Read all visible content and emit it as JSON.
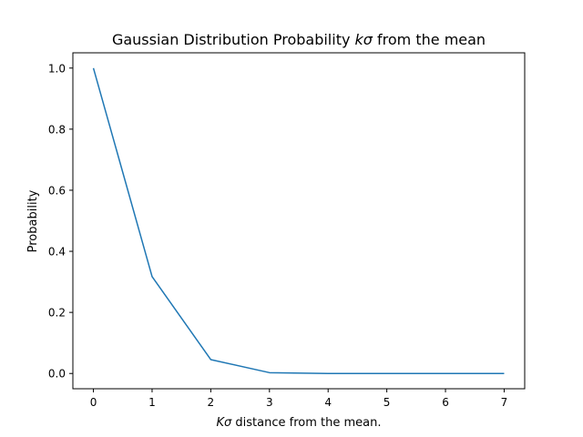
{
  "chart_data": {
    "type": "line",
    "title": {
      "prefix": "Gaussian Distribution Probability ",
      "math": "kσ",
      "suffix": " from the mean"
    },
    "xlabel": {
      "math": "Kσ",
      "suffix": " distance from the mean."
    },
    "ylabel": "Probability",
    "x": [
      0,
      1,
      2,
      3,
      4,
      5,
      6,
      7
    ],
    "series": [
      {
        "values": [
          1.0,
          0.3173,
          0.0455,
          0.0027,
          0.0001,
          0.0,
          0.0,
          0.0
        ],
        "color": "#1f77b4"
      }
    ],
    "xlim": [
      -0.35,
      7.35
    ],
    "ylim": [
      -0.05,
      1.05
    ],
    "xticks": [
      0,
      1,
      2,
      3,
      4,
      5,
      6,
      7
    ],
    "xtick_labels": [
      "0",
      "1",
      "2",
      "3",
      "4",
      "5",
      "6",
      "7"
    ],
    "yticks": [
      0.0,
      0.2,
      0.4,
      0.6,
      0.8,
      1.0
    ],
    "ytick_labels": [
      "0.0",
      "0.2",
      "0.4",
      "0.6",
      "0.8",
      "1.0"
    ],
    "grid": false,
    "legend": false
  }
}
